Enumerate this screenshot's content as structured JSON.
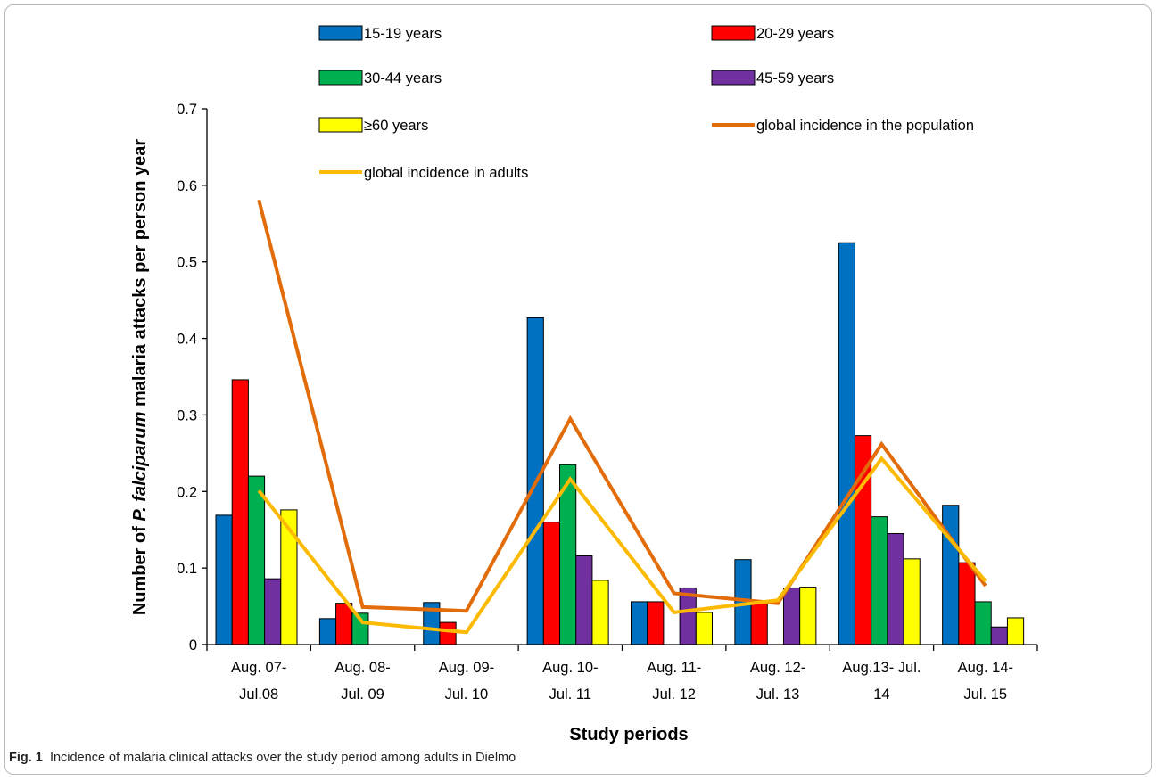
{
  "caption": {
    "label": "Fig. 1",
    "text": "Incidence of malaria clinical attacks over the study period among adults in Dielmo"
  },
  "chart_data": {
    "type": "bar",
    "categories": [
      [
        "Aug. 07-",
        "Jul.08"
      ],
      [
        "Aug. 08-",
        "Jul. 09"
      ],
      [
        "Aug. 09-",
        "Jul. 10"
      ],
      [
        "Aug. 10-",
        "Jul. 11"
      ],
      [
        "Aug. 11-",
        "Jul. 12"
      ],
      [
        "Aug. 12-",
        "Jul. 13"
      ],
      [
        "Aug.13- Jul.",
        "14"
      ],
      [
        "Aug. 14-",
        "Jul. 15"
      ]
    ],
    "series": [
      {
        "name": "15-19 years",
        "type": "bar",
        "color": "#0070c0",
        "values": [
          0.169,
          0.034,
          0.055,
          0.427,
          0.056,
          0.111,
          0.525,
          0.182
        ]
      },
      {
        "name": "20-29 years",
        "type": "bar",
        "color": "#ff0000",
        "values": [
          0.346,
          0.054,
          0.029,
          0.16,
          0.056,
          0.056,
          0.273,
          0.107
        ]
      },
      {
        "name": "30-44 years",
        "type": "bar",
        "color": "#00b050",
        "values": [
          0.22,
          0.041,
          0,
          0.235,
          0,
          0,
          0.167,
          0.056
        ]
      },
      {
        "name": "45-59 years",
        "type": "bar",
        "color": "#7030a0",
        "values": [
          0.086,
          0,
          0,
          0.116,
          0.074,
          0.074,
          0.145,
          0.023
        ]
      },
      {
        "name": "≥60 years",
        "type": "bar",
        "color": "#ffff00",
        "values": [
          0.176,
          0,
          0,
          0.084,
          0.042,
          0.075,
          0.112,
          0.035
        ]
      },
      {
        "name": "global incidence in the population",
        "type": "line",
        "color": "#e36c0a",
        "values": [
          0.581,
          0.049,
          0.044,
          0.295,
          0.067,
          0.054,
          0.262,
          0.077
        ]
      },
      {
        "name": "global incidence in adults",
        "type": "line",
        "color": "#fcba03",
        "values": [
          0.201,
          0.029,
          0.016,
          0.216,
          0.042,
          0.058,
          0.243,
          0.083
        ]
      }
    ],
    "xlabel": "Study periods",
    "ylabel_parts": [
      "Number of ",
      "P. falciparum",
      " malaria attacks per person year"
    ],
    "yticks": [
      "0",
      "0.1",
      "0.2",
      "0.3",
      "0.4",
      "0.5",
      "0.6",
      "0.7"
    ],
    "ylim": [
      0,
      0.7
    ],
    "grid": false,
    "legend_position": "top"
  }
}
